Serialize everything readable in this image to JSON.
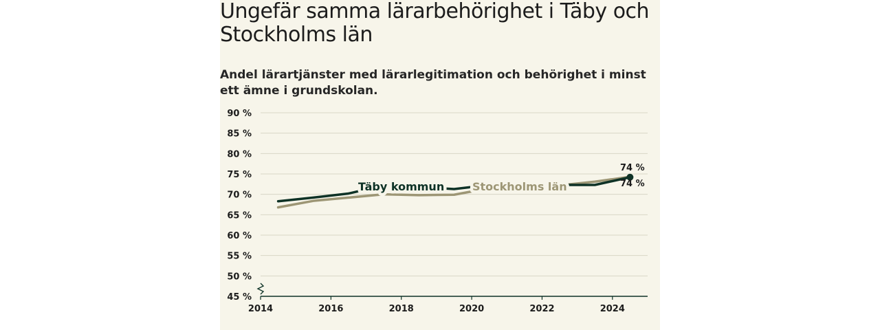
{
  "header": {
    "title": "Ungefär samma lärarbehörighet i Täby och Stockholms län",
    "subtitle": "Andel lärartjänster med lärarlegitimation och behörighet i minst ett ämne i grundskolan."
  },
  "colors": {
    "background": "#f7f5ea",
    "taby": "#0e3226",
    "stockholm": "#9d9675",
    "grid": "#d8d6c6",
    "axis": "#0e3226",
    "text": "#1c1c1c"
  },
  "chart_data": {
    "type": "line",
    "title": "Ungefär samma lärarbehörighet i Täby och Stockholms län",
    "subtitle": "Andel lärartjänster med lärarlegitimation och behörighet i minst ett ämne i grundskolan.",
    "xlabel": "",
    "ylabel": "",
    "xlim": [
      2014,
      2025
    ],
    "ylim": [
      45,
      90
    ],
    "xticks": [
      2014,
      2016,
      2018,
      2020,
      2022,
      2024
    ],
    "xtick_labels": [
      "2014",
      "2016",
      "2018",
      "2020",
      "2022",
      "2024"
    ],
    "yticks": [
      45,
      50,
      55,
      60,
      65,
      70,
      75,
      80,
      85,
      90
    ],
    "ytick_labels": [
      "45 %",
      "50 %",
      "55 %",
      "60 %",
      "65 %",
      "70 %",
      "75 %",
      "80 %",
      "85 %",
      "90 %"
    ],
    "grid": true,
    "axis_break": true,
    "legend": "inline labels",
    "series": [
      {
        "name": "Täby kommun",
        "color": "#0e3226",
        "x": [
          2014.5,
          2015.5,
          2016.5,
          2017.5,
          2018.5,
          2019.5,
          2020.5,
          2021.5,
          2022.5,
          2023.5,
          2024.5
        ],
        "y": [
          68.3,
          69.2,
          70.2,
          72.2,
          71.8,
          71.3,
          72.3,
          72.2,
          72.3,
          72.3,
          74.2
        ],
        "end_label": "74 %"
      },
      {
        "name": "Stockholms län",
        "color": "#9d9675",
        "x": [
          2014.5,
          2015.5,
          2016.5,
          2017.5,
          2018.5,
          2019.5,
          2020.5,
          2021.5,
          2022.5,
          2023.5,
          2024.5
        ],
        "y": [
          66.8,
          68.4,
          69.2,
          70.0,
          69.8,
          69.9,
          71.5,
          71.8,
          72.2,
          73.1,
          74.3
        ],
        "end_label": "74 %"
      }
    ]
  }
}
